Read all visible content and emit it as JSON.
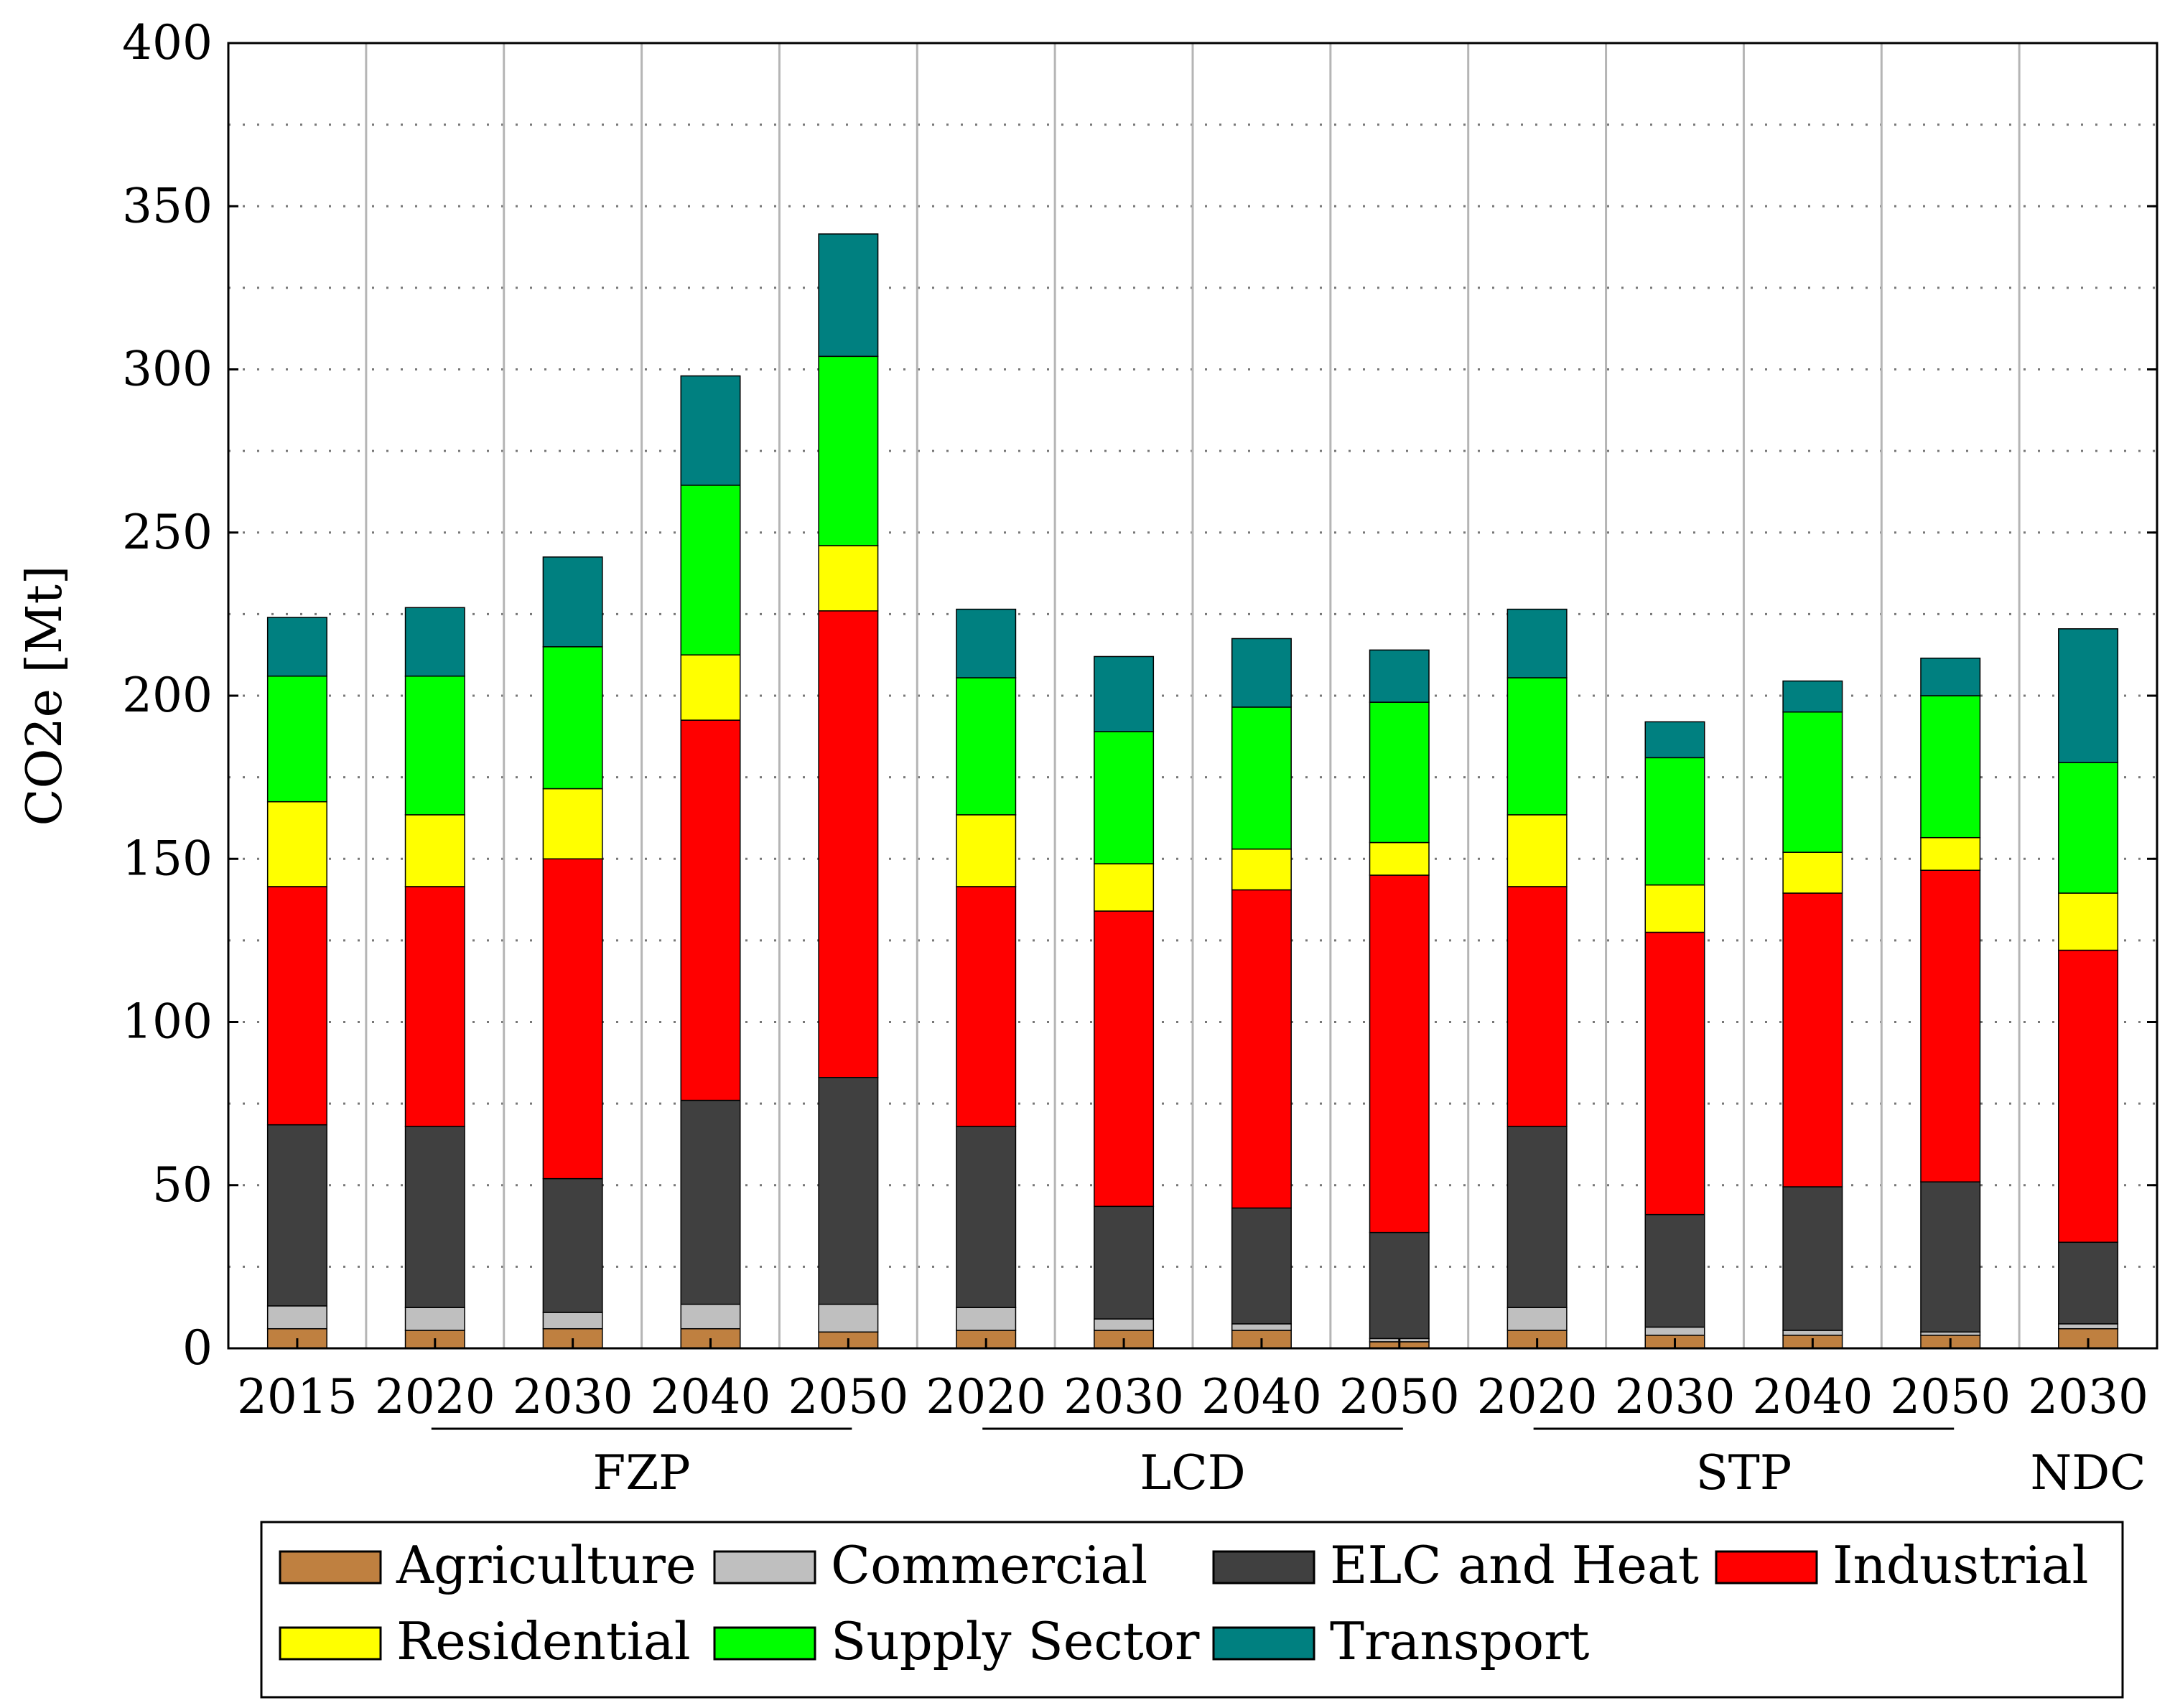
{
  "chart_data": {
    "type": "bar",
    "stacked": true,
    "ylabel": "CO2e [Mt]",
    "xlabel": "",
    "ylim": [
      0,
      400
    ],
    "yticks": [
      0,
      50,
      100,
      150,
      200,
      250,
      300,
      350,
      400
    ],
    "grid": "dotted horizontal at 25 Mt steps, vertical lines between bars",
    "legend_position": "bottom",
    "categories": [
      "2015",
      "2020",
      "2030",
      "2040",
      "2050",
      "2020",
      "2030",
      "2040",
      "2050",
      "2020",
      "2030",
      "2040",
      "2050",
      "2030"
    ],
    "groups": [
      {
        "label": "FZP",
        "from": 1,
        "to": 4
      },
      {
        "label": "LCD",
        "from": 5,
        "to": 8
      },
      {
        "label": "STP",
        "from": 9,
        "to": 12
      },
      {
        "label": "NDC",
        "from": 13,
        "to": 13
      }
    ],
    "series": [
      {
        "name": "Agriculture",
        "color": "#bf8040",
        "values": [
          6,
          5.5,
          6,
          6,
          5,
          5.5,
          5.5,
          5.5,
          2,
          5.5,
          4,
          4,
          4,
          6
        ]
      },
      {
        "name": "Commercial",
        "color": "#bfbfbf",
        "values": [
          7,
          7,
          5,
          7.5,
          8.5,
          7,
          3.5,
          2,
          1,
          7,
          2.5,
          1.5,
          1,
          1.5
        ]
      },
      {
        "name": "ELC and Heat",
        "color": "#404040",
        "values": [
          55.5,
          55.5,
          41,
          62.5,
          69.5,
          55.5,
          34.5,
          35.5,
          32.5,
          55.5,
          34.5,
          44,
          46,
          25
        ]
      },
      {
        "name": "Industrial",
        "color": "#ff0000",
        "values": [
          73,
          73.5,
          98,
          116.5,
          143,
          73.5,
          90.5,
          97.5,
          109.5,
          73.5,
          86.5,
          90,
          95.5,
          89.5
        ]
      },
      {
        "name": "Residential",
        "color": "#ffff00",
        "values": [
          26,
          22,
          21.5,
          20,
          20,
          22,
          14.5,
          12.5,
          10,
          22,
          14.5,
          12.5,
          10,
          17.5
        ]
      },
      {
        "name": "Supply Sector",
        "color": "#00ff00",
        "values": [
          38.5,
          42.5,
          43.5,
          52,
          58,
          42,
          40.5,
          43.5,
          43,
          42,
          39,
          43,
          43.5,
          40
        ]
      },
      {
        "name": "Transport",
        "color": "#008080",
        "values": [
          18,
          21,
          27.5,
          33.5,
          37.5,
          21,
          23,
          21,
          16,
          21,
          11,
          9.5,
          11.5,
          41
        ]
      }
    ]
  }
}
